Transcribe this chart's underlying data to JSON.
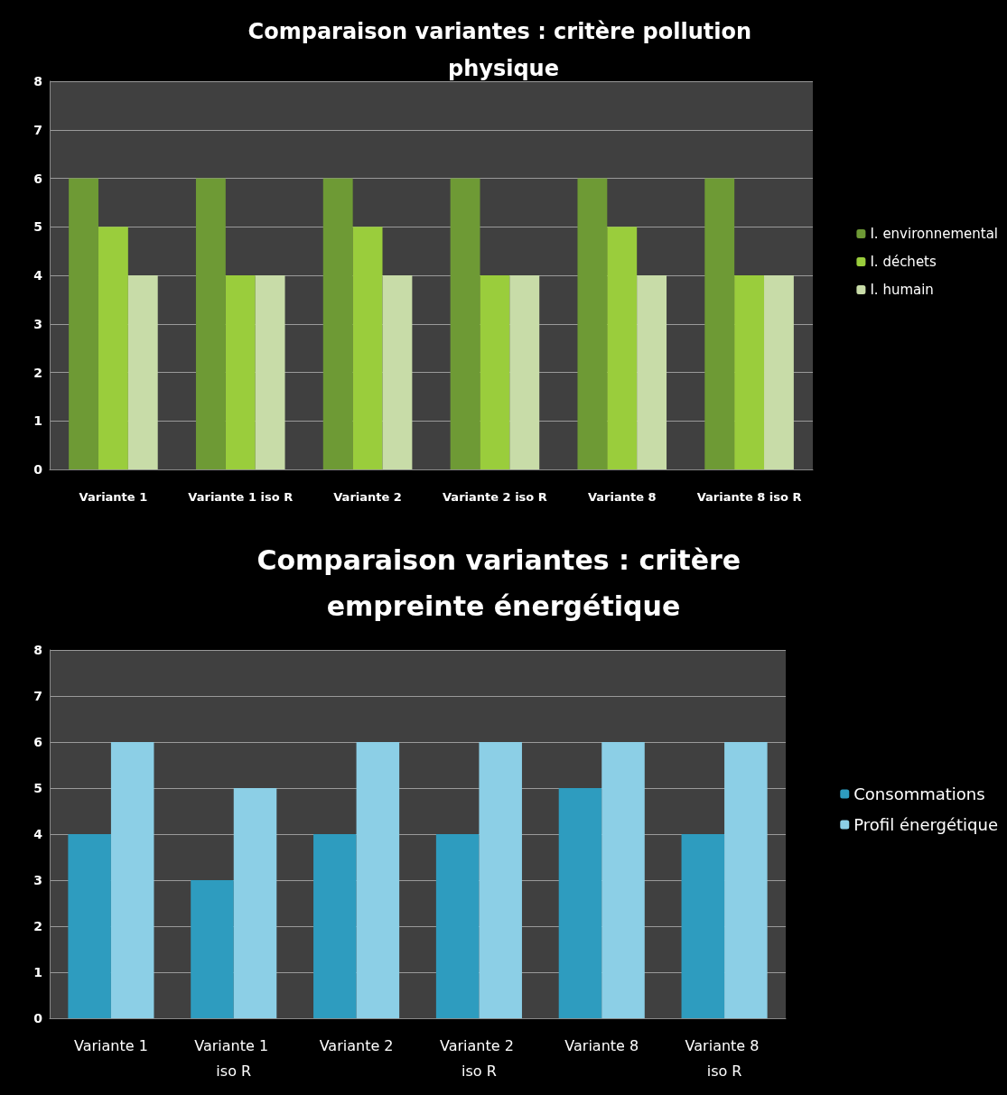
{
  "chart_data": [
    {
      "type": "bar",
      "title": "Comparaison variantes : critère pollution physique",
      "categories": [
        "Variante 1",
        "Variante 1 iso R",
        "Variante 2",
        "Variante 2 iso R",
        "Variante 8",
        "Variante 8 iso R"
      ],
      "series": [
        {
          "name": "I. environnemental",
          "color": "#6e9a35",
          "values": [
            6,
            6,
            6,
            6,
            6,
            6
          ]
        },
        {
          "name": "I. déchets",
          "color": "#9acd3c",
          "values": [
            5,
            4,
            5,
            4,
            5,
            4
          ]
        },
        {
          "name": "I. humain",
          "color": "#c8dca8",
          "values": [
            4,
            4,
            4,
            4,
            4,
            4
          ]
        }
      ],
      "ylim": [
        0,
        8
      ],
      "yticks": [
        0,
        1,
        2,
        3,
        4,
        5,
        6,
        7,
        8
      ],
      "grid": "y",
      "legend": "right"
    },
    {
      "type": "bar",
      "title": "Comparaison variantes : critère empreinte énergétique",
      "categories": [
        "Variante 1",
        "Variante 1 iso R",
        "Variante 2",
        "Variante 2 iso R",
        "Variante 8",
        "Variante 8 iso R"
      ],
      "series": [
        {
          "name": "Consommations",
          "color": "#2e9cbf",
          "values": [
            4,
            3,
            4,
            4,
            5,
            4
          ]
        },
        {
          "name": "Profil énergétique",
          "color": "#8ccfe6",
          "values": [
            6,
            5,
            6,
            6,
            6,
            6
          ]
        }
      ],
      "ylim": [
        0,
        8
      ],
      "yticks": [
        0,
        1,
        2,
        3,
        4,
        5,
        6,
        7,
        8
      ],
      "grid": "y",
      "legend": "right"
    }
  ]
}
